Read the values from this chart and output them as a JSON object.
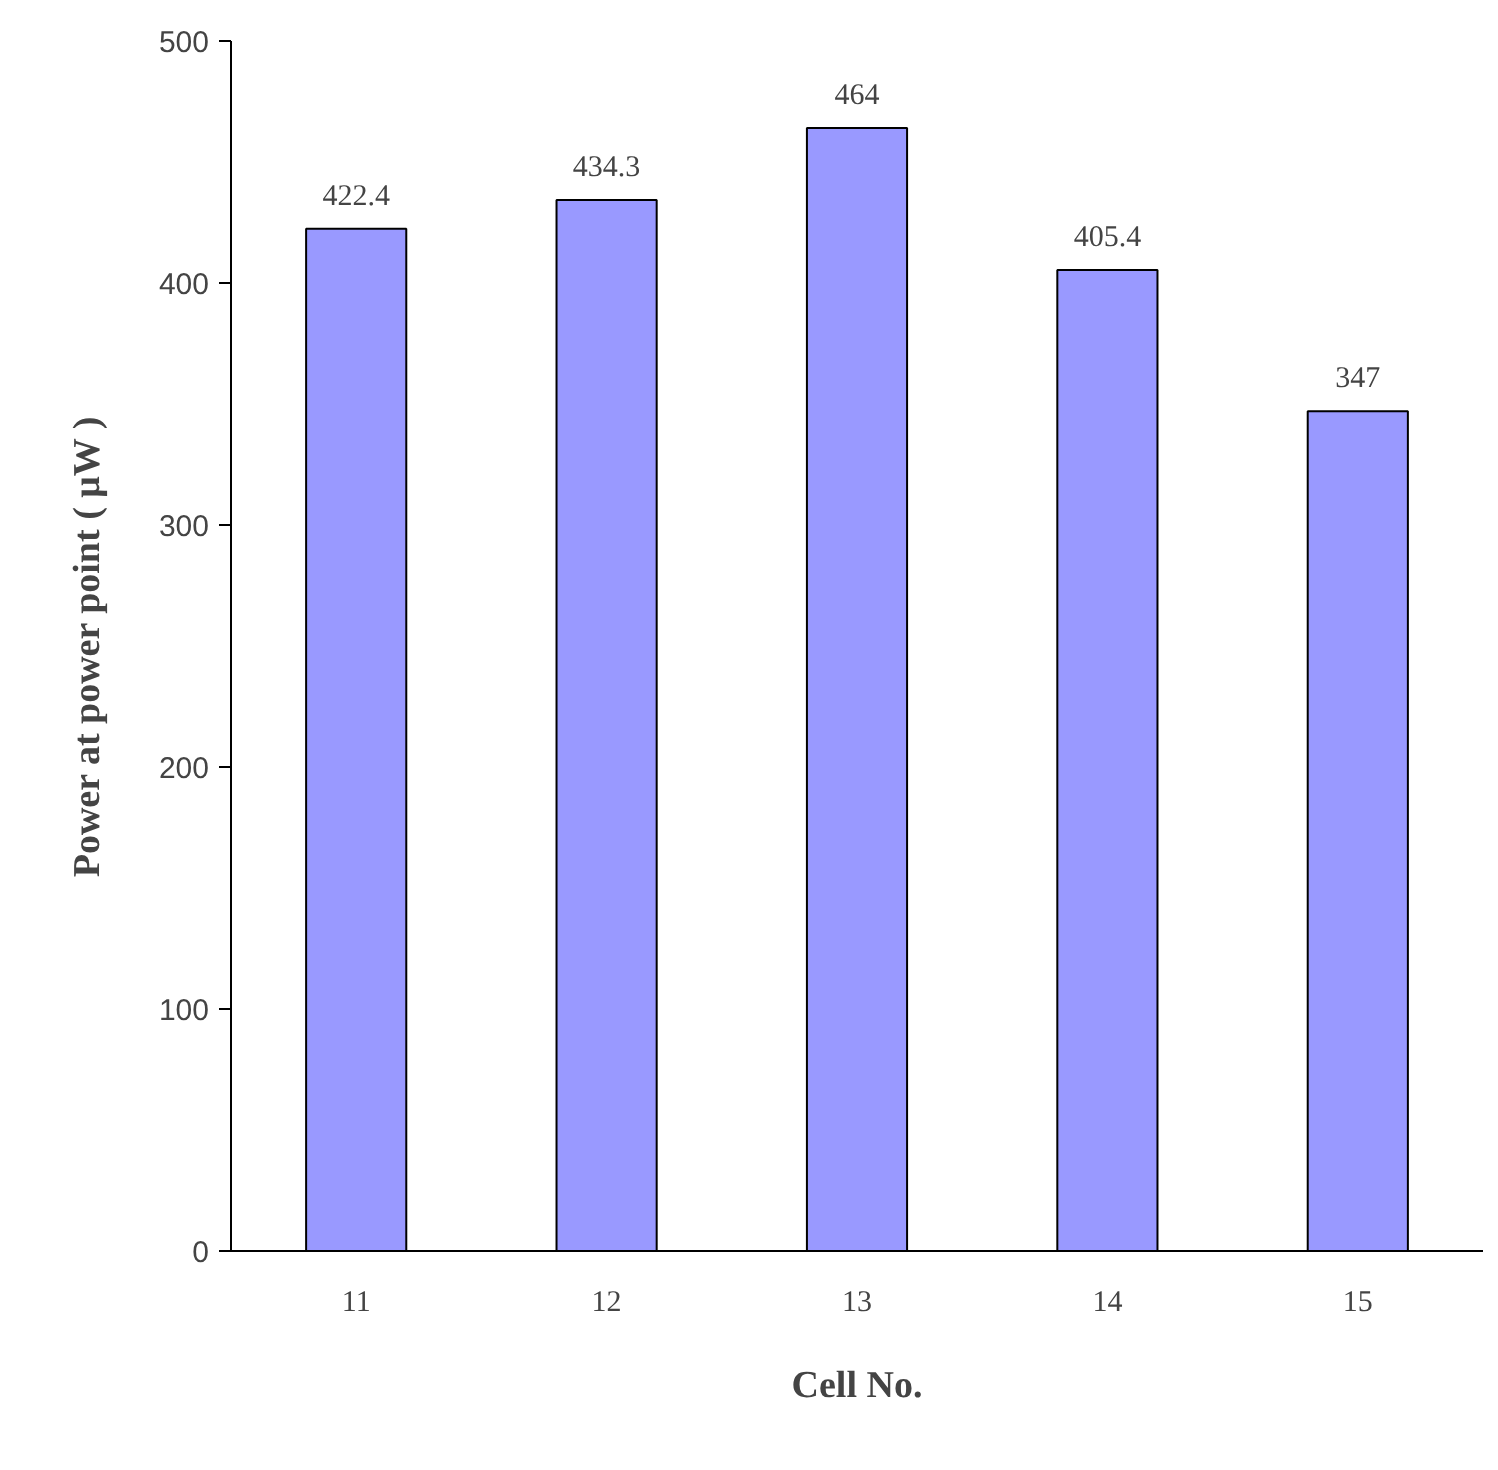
{
  "chart_data": {
    "type": "bar",
    "xlabel": "Cell No.",
    "ylabel": "Power at power point ( μW )",
    "categories": [
      "11",
      "12",
      "13",
      "14",
      "15"
    ],
    "values": [
      422.4,
      434.3,
      464,
      405.4,
      347
    ],
    "color": "#9999ff",
    "ylim": [
      0,
      500
    ],
    "yticks": [
      0,
      100,
      200,
      300,
      400,
      500
    ],
    "data_labels": true,
    "grid": false
  }
}
